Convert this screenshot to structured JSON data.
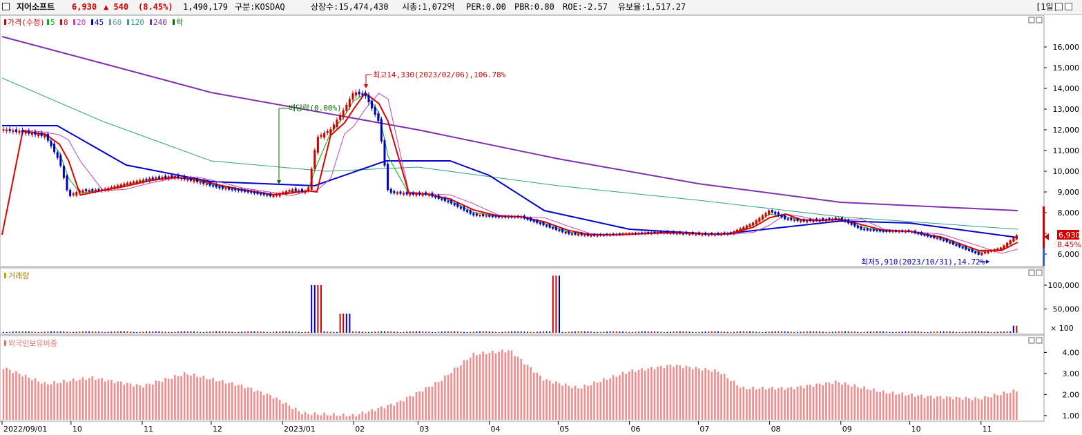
{
  "header": {
    "name": "지어소프트",
    "price": "6,930",
    "change": "▲ 540",
    "change_pct": "(8.45%)",
    "volume": "1,490,179",
    "market": "구분:KOSDAQ",
    "shares": "상장수:15,474,430",
    "mcap": "시총:1,072억",
    "per": "PER:0.00",
    "pbr": "PBR:0.80",
    "roe": "ROE:-2.57",
    "reserve": "유보율:1,517.27",
    "period": "[1일]"
  },
  "legend": {
    "price": [
      {
        "label": "가격(수정)",
        "color": "#d00000"
      },
      {
        "label": "5",
        "color": "#00b000"
      },
      {
        "label": "8",
        "color": "#e00000"
      },
      {
        "label": "20",
        "color": "#c040c0"
      },
      {
        "label": "45",
        "color": "#0000c8"
      },
      {
        "label": "60",
        "color": "#60a0a0"
      },
      {
        "label": "120",
        "color": "#30a080"
      },
      {
        "label": "240",
        "color": "#8030b0"
      },
      {
        "label": "락",
        "color": "#007000"
      }
    ],
    "volume": "거래량",
    "foreign": "외국인보유비중"
  },
  "annotations": {
    "high": "최고14,330(2023/02/06),106.78%",
    "low": "최저5,910(2023/10/31),14.72%",
    "dividend": "배당락(0.00%)",
    "price_tag": "6,930",
    "pct_tag": "8.45%",
    "vol_unit": "× 100"
  },
  "chart_data": [
    {
      "type": "candlestick",
      "name": "가격(수정)",
      "x_ticks": [
        "2022/09/01",
        "10",
        "11",
        "12",
        "2023/01",
        "02",
        "03",
        "04",
        "05",
        "06",
        "07",
        "08",
        "09",
        "10",
        "11"
      ],
      "y_ticks": [
        "16,000",
        "15,000",
        "14,000",
        "13,000",
        "12,000",
        "11,000",
        "10,000",
        "9,000",
        "8,000",
        "7,000",
        "6,000"
      ],
      "ylim": [
        5500,
        16800
      ],
      "close": [
        {
          "d": "2022/09/01",
          "v": 12000
        },
        {
          "d": "2022/09/10",
          "v": 11900
        },
        {
          "d": "2022/09/20",
          "v": 11700
        },
        {
          "d": "2022/09/26",
          "v": 10500
        },
        {
          "d": "2022/09/30",
          "v": 8800
        },
        {
          "d": "2022/10/05",
          "v": 9050
        },
        {
          "d": "2022/10/15",
          "v": 9100
        },
        {
          "d": "2022/10/25",
          "v": 9400
        },
        {
          "d": "2022/11/05",
          "v": 9650
        },
        {
          "d": "2022/11/15",
          "v": 9750
        },
        {
          "d": "2022/11/25",
          "v": 9500
        },
        {
          "d": "2022/12/05",
          "v": 9200
        },
        {
          "d": "2022/12/15",
          "v": 9050
        },
        {
          "d": "2022/12/28",
          "v": 8800
        },
        {
          "d": "2023/01/05",
          "v": 9100
        },
        {
          "d": "2023/01/12",
          "v": 9000
        },
        {
          "d": "2023/01/16",
          "v": 11600
        },
        {
          "d": "2023/01/22",
          "v": 12000
        },
        {
          "d": "2023/01/28",
          "v": 13000
        },
        {
          "d": "2023/02/01",
          "v": 13800
        },
        {
          "d": "2023/02/06",
          "v": 13700
        },
        {
          "d": "2023/02/12",
          "v": 12400
        },
        {
          "d": "2023/02/16",
          "v": 9000
        },
        {
          "d": "2023/02/25",
          "v": 8900
        },
        {
          "d": "2023/03/05",
          "v": 8900
        },
        {
          "d": "2023/03/15",
          "v": 8500
        },
        {
          "d": "2023/03/25",
          "v": 7900
        },
        {
          "d": "2023/04/05",
          "v": 7800
        },
        {
          "d": "2023/04/15",
          "v": 7800
        },
        {
          "d": "2023/04/25",
          "v": 7400
        },
        {
          "d": "2023/05/05",
          "v": 7000
        },
        {
          "d": "2023/05/15",
          "v": 6900
        },
        {
          "d": "2023/05/25",
          "v": 6950
        },
        {
          "d": "2023/06/05",
          "v": 7000
        },
        {
          "d": "2023/06/15",
          "v": 7050
        },
        {
          "d": "2023/06/25",
          "v": 7000
        },
        {
          "d": "2023/07/05",
          "v": 6950
        },
        {
          "d": "2023/07/15",
          "v": 7000
        },
        {
          "d": "2023/07/25",
          "v": 7500
        },
        {
          "d": "2023/08/01",
          "v": 8100
        },
        {
          "d": "2023/08/08",
          "v": 7700
        },
        {
          "d": "2023/08/15",
          "v": 7600
        },
        {
          "d": "2023/08/22",
          "v": 7650
        },
        {
          "d": "2023/09/01",
          "v": 7700
        },
        {
          "d": "2023/09/10",
          "v": 7200
        },
        {
          "d": "2023/09/20",
          "v": 7100
        },
        {
          "d": "2023/10/01",
          "v": 7100
        },
        {
          "d": "2023/10/15",
          "v": 6700
        },
        {
          "d": "2023/10/31",
          "v": 6000
        },
        {
          "d": "2023/11/10",
          "v": 6300
        },
        {
          "d": "2023/11/17",
          "v": 6930
        }
      ],
      "ma": [
        {
          "period": "240",
          "color": "#8030b0",
          "points": [
            [
              "2022/09/01",
              16500
            ],
            [
              "2022/10/15",
              15200
            ],
            [
              "2022/12/01",
              13800
            ],
            [
              "2023/01/20",
              12800
            ],
            [
              "2023/03/01",
              12000
            ],
            [
              "2023/05/01",
              10600
            ],
            [
              "2023/07/01",
              9400
            ],
            [
              "2023/09/01",
              8500
            ],
            [
              "2023/11/17",
              8100
            ]
          ]
        },
        {
          "period": "120",
          "color": "#30a080",
          "points": [
            [
              "2022/09/01",
              14500
            ],
            [
              "2022/10/15",
              12400
            ],
            [
              "2022/12/01",
              10500
            ],
            [
              "2023/01/20",
              10000
            ],
            [
              "2023/03/01",
              10200
            ],
            [
              "2023/05/01",
              9300
            ],
            [
              "2023/07/01",
              8600
            ],
            [
              "2023/09/01",
              7800
            ],
            [
              "2023/11/17",
              7200
            ]
          ]
        },
        {
          "period": "45",
          "color": "#0000c8",
          "points": [
            [
              "2022/09/01",
              12200
            ],
            [
              "2022/09/25",
              12200
            ],
            [
              "2022/10/25",
              10300
            ],
            [
              "2022/12/01",
              9500
            ],
            [
              "2023/01/15",
              9300
            ],
            [
              "2023/02/15",
              10500
            ],
            [
              "2023/03/15",
              10500
            ],
            [
              "2023/04/01",
              9800
            ],
            [
              "2023/04/25",
              8100
            ],
            [
              "2023/06/01",
              7200
            ],
            [
              "2023/07/10",
              6950
            ],
            [
              "2023/09/01",
              7600
            ],
            [
              "2023/10/01",
              7500
            ],
            [
              "2023/11/17",
              6800
            ]
          ]
        }
      ]
    },
    {
      "type": "bar",
      "name": "거래량",
      "y_ticks": [
        "100,000",
        "50,000"
      ],
      "ylim": [
        0,
        130000
      ],
      "spikes": [
        {
          "d": "2023/01/16",
          "v": 100000
        },
        {
          "d": "2023/01/28",
          "v": 40000
        },
        {
          "d": "2023/04/30",
          "v": 120000
        },
        {
          "d": "2023/11/17",
          "v": 15000
        }
      ]
    },
    {
      "type": "bar",
      "name": "외국인보유비중",
      "y_ticks": [
        "4.00",
        "3.00",
        "2.00",
        "1.00"
      ],
      "ylim": [
        0.8,
        4.5
      ],
      "values": [
        {
          "d": "2022/09/01",
          "v": 3.3
        },
        {
          "d": "2022/09/20",
          "v": 2.5
        },
        {
          "d": "2022/10/10",
          "v": 2.8
        },
        {
          "d": "2022/11/01",
          "v": 2.4
        },
        {
          "d": "2022/11/20",
          "v": 3.0
        },
        {
          "d": "2022/12/15",
          "v": 2.4
        },
        {
          "d": "2022/12/28",
          "v": 1.9
        },
        {
          "d": "2023/01/10",
          "v": 1.1
        },
        {
          "d": "2023/02/01",
          "v": 1.0
        },
        {
          "d": "2023/02/20",
          "v": 1.6
        },
        {
          "d": "2023/03/10",
          "v": 2.6
        },
        {
          "d": "2023/03/25",
          "v": 3.9
        },
        {
          "d": "2023/04/10",
          "v": 4.1
        },
        {
          "d": "2023/04/25",
          "v": 2.7
        },
        {
          "d": "2023/05/10",
          "v": 2.3
        },
        {
          "d": "2023/06/01",
          "v": 3.1
        },
        {
          "d": "2023/06/20",
          "v": 3.4
        },
        {
          "d": "2023/07/10",
          "v": 3.1
        },
        {
          "d": "2023/07/20",
          "v": 2.3
        },
        {
          "d": "2023/08/10",
          "v": 2.3
        },
        {
          "d": "2023/08/30",
          "v": 2.6
        },
        {
          "d": "2023/09/20",
          "v": 2.1
        },
        {
          "d": "2023/10/10",
          "v": 1.9
        },
        {
          "d": "2023/10/31",
          "v": 1.8
        },
        {
          "d": "2023/11/17",
          "v": 2.2
        }
      ]
    }
  ]
}
